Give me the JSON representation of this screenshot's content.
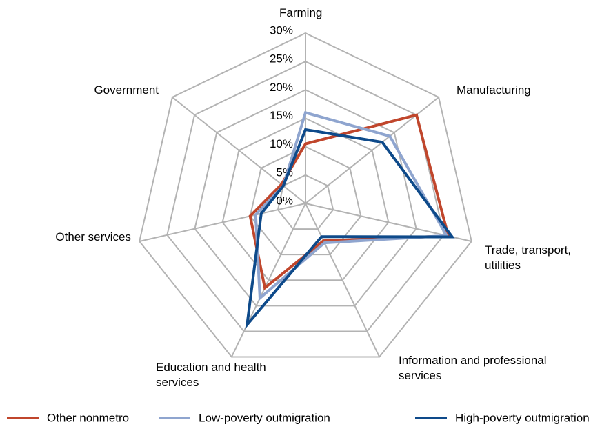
{
  "chart_data": {
    "type": "radar",
    "categories": [
      "Farming",
      "Manufacturing",
      "Trade, transport, utilities",
      "Information and professional services",
      "Education and health services",
      "Other services",
      "Government"
    ],
    "series": [
      {
        "name": "Other nonmetro",
        "color": "#c0462c",
        "values": [
          10.5,
          25,
          25.8,
          7.3,
          16.5,
          10,
          5.4
        ]
      },
      {
        "name": "Low-poverty outmigration",
        "color": "#8fa5cf",
        "values": [
          16,
          19,
          25.5,
          7.7,
          18.5,
          9,
          5
        ]
      },
      {
        "name": "High-poverty outmigration",
        "color": "#0e4a8a",
        "values": [
          13,
          17.3,
          26.5,
          6.5,
          23.7,
          8,
          5
        ]
      }
    ],
    "ylim": [
      0,
      30
    ],
    "yticks": [
      {
        "value": 0,
        "label": "0%"
      },
      {
        "value": 5,
        "label": "5%"
      },
      {
        "value": 10,
        "label": "10%"
      },
      {
        "value": 15,
        "label": "15%"
      },
      {
        "value": 20,
        "label": "20%"
      },
      {
        "value": 25,
        "label": "25%"
      },
      {
        "value": 30,
        "label": "30%"
      }
    ],
    "grid": true
  }
}
